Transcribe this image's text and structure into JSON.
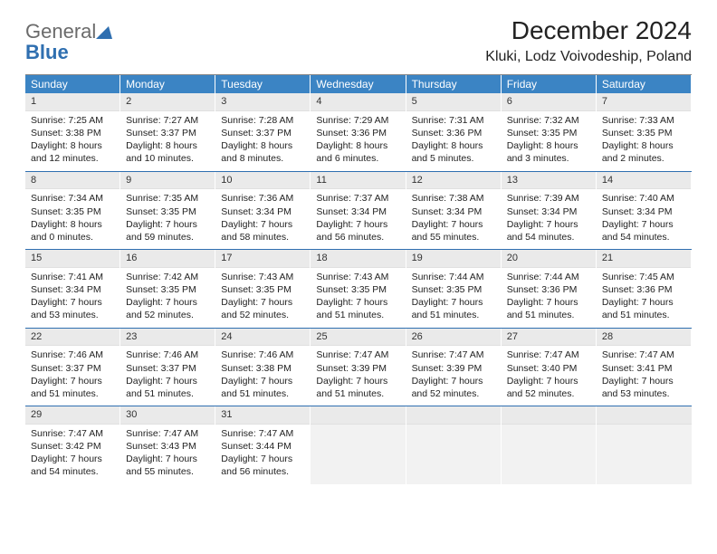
{
  "logo": {
    "general": "General",
    "blue": "Blue",
    "tri_color": "#2f6fb0"
  },
  "title": "December 2024",
  "location": "Kluki, Lodz Voivodeship, Poland",
  "colors": {
    "header_bg": "#3b84c4",
    "header_text": "#ffffff",
    "daynum_bg": "#eaeaea",
    "divider": "#2f6fb0",
    "text": "#222222",
    "logo_general": "#6b6b6b",
    "logo_blue": "#2f6fb0",
    "background": "#ffffff"
  },
  "day_headers": [
    "Sunday",
    "Monday",
    "Tuesday",
    "Wednesday",
    "Thursday",
    "Friday",
    "Saturday"
  ],
  "weeks": [
    [
      {
        "n": "1",
        "sr": "Sunrise: 7:25 AM",
        "ss": "Sunset: 3:38 PM",
        "dl": "Daylight: 8 hours and 12 minutes."
      },
      {
        "n": "2",
        "sr": "Sunrise: 7:27 AM",
        "ss": "Sunset: 3:37 PM",
        "dl": "Daylight: 8 hours and 10 minutes."
      },
      {
        "n": "3",
        "sr": "Sunrise: 7:28 AM",
        "ss": "Sunset: 3:37 PM",
        "dl": "Daylight: 8 hours and 8 minutes."
      },
      {
        "n": "4",
        "sr": "Sunrise: 7:29 AM",
        "ss": "Sunset: 3:36 PM",
        "dl": "Daylight: 8 hours and 6 minutes."
      },
      {
        "n": "5",
        "sr": "Sunrise: 7:31 AM",
        "ss": "Sunset: 3:36 PM",
        "dl": "Daylight: 8 hours and 5 minutes."
      },
      {
        "n": "6",
        "sr": "Sunrise: 7:32 AM",
        "ss": "Sunset: 3:35 PM",
        "dl": "Daylight: 8 hours and 3 minutes."
      },
      {
        "n": "7",
        "sr": "Sunrise: 7:33 AM",
        "ss": "Sunset: 3:35 PM",
        "dl": "Daylight: 8 hours and 2 minutes."
      }
    ],
    [
      {
        "n": "8",
        "sr": "Sunrise: 7:34 AM",
        "ss": "Sunset: 3:35 PM",
        "dl": "Daylight: 8 hours and 0 minutes."
      },
      {
        "n": "9",
        "sr": "Sunrise: 7:35 AM",
        "ss": "Sunset: 3:35 PM",
        "dl": "Daylight: 7 hours and 59 minutes."
      },
      {
        "n": "10",
        "sr": "Sunrise: 7:36 AM",
        "ss": "Sunset: 3:34 PM",
        "dl": "Daylight: 7 hours and 58 minutes."
      },
      {
        "n": "11",
        "sr": "Sunrise: 7:37 AM",
        "ss": "Sunset: 3:34 PM",
        "dl": "Daylight: 7 hours and 56 minutes."
      },
      {
        "n": "12",
        "sr": "Sunrise: 7:38 AM",
        "ss": "Sunset: 3:34 PM",
        "dl": "Daylight: 7 hours and 55 minutes."
      },
      {
        "n": "13",
        "sr": "Sunrise: 7:39 AM",
        "ss": "Sunset: 3:34 PM",
        "dl": "Daylight: 7 hours and 54 minutes."
      },
      {
        "n": "14",
        "sr": "Sunrise: 7:40 AM",
        "ss": "Sunset: 3:34 PM",
        "dl": "Daylight: 7 hours and 54 minutes."
      }
    ],
    [
      {
        "n": "15",
        "sr": "Sunrise: 7:41 AM",
        "ss": "Sunset: 3:34 PM",
        "dl": "Daylight: 7 hours and 53 minutes."
      },
      {
        "n": "16",
        "sr": "Sunrise: 7:42 AM",
        "ss": "Sunset: 3:35 PM",
        "dl": "Daylight: 7 hours and 52 minutes."
      },
      {
        "n": "17",
        "sr": "Sunrise: 7:43 AM",
        "ss": "Sunset: 3:35 PM",
        "dl": "Daylight: 7 hours and 52 minutes."
      },
      {
        "n": "18",
        "sr": "Sunrise: 7:43 AM",
        "ss": "Sunset: 3:35 PM",
        "dl": "Daylight: 7 hours and 51 minutes."
      },
      {
        "n": "19",
        "sr": "Sunrise: 7:44 AM",
        "ss": "Sunset: 3:35 PM",
        "dl": "Daylight: 7 hours and 51 minutes."
      },
      {
        "n": "20",
        "sr": "Sunrise: 7:44 AM",
        "ss": "Sunset: 3:36 PM",
        "dl": "Daylight: 7 hours and 51 minutes."
      },
      {
        "n": "21",
        "sr": "Sunrise: 7:45 AM",
        "ss": "Sunset: 3:36 PM",
        "dl": "Daylight: 7 hours and 51 minutes."
      }
    ],
    [
      {
        "n": "22",
        "sr": "Sunrise: 7:46 AM",
        "ss": "Sunset: 3:37 PM",
        "dl": "Daylight: 7 hours and 51 minutes."
      },
      {
        "n": "23",
        "sr": "Sunrise: 7:46 AM",
        "ss": "Sunset: 3:37 PM",
        "dl": "Daylight: 7 hours and 51 minutes."
      },
      {
        "n": "24",
        "sr": "Sunrise: 7:46 AM",
        "ss": "Sunset: 3:38 PM",
        "dl": "Daylight: 7 hours and 51 minutes."
      },
      {
        "n": "25",
        "sr": "Sunrise: 7:47 AM",
        "ss": "Sunset: 3:39 PM",
        "dl": "Daylight: 7 hours and 51 minutes."
      },
      {
        "n": "26",
        "sr": "Sunrise: 7:47 AM",
        "ss": "Sunset: 3:39 PM",
        "dl": "Daylight: 7 hours and 52 minutes."
      },
      {
        "n": "27",
        "sr": "Sunrise: 7:47 AM",
        "ss": "Sunset: 3:40 PM",
        "dl": "Daylight: 7 hours and 52 minutes."
      },
      {
        "n": "28",
        "sr": "Sunrise: 7:47 AM",
        "ss": "Sunset: 3:41 PM",
        "dl": "Daylight: 7 hours and 53 minutes."
      }
    ],
    [
      {
        "n": "29",
        "sr": "Sunrise: 7:47 AM",
        "ss": "Sunset: 3:42 PM",
        "dl": "Daylight: 7 hours and 54 minutes."
      },
      {
        "n": "30",
        "sr": "Sunrise: 7:47 AM",
        "ss": "Sunset: 3:43 PM",
        "dl": "Daylight: 7 hours and 55 minutes."
      },
      {
        "n": "31",
        "sr": "Sunrise: 7:47 AM",
        "ss": "Sunset: 3:44 PM",
        "dl": "Daylight: 7 hours and 56 minutes."
      },
      null,
      null,
      null,
      null
    ]
  ]
}
